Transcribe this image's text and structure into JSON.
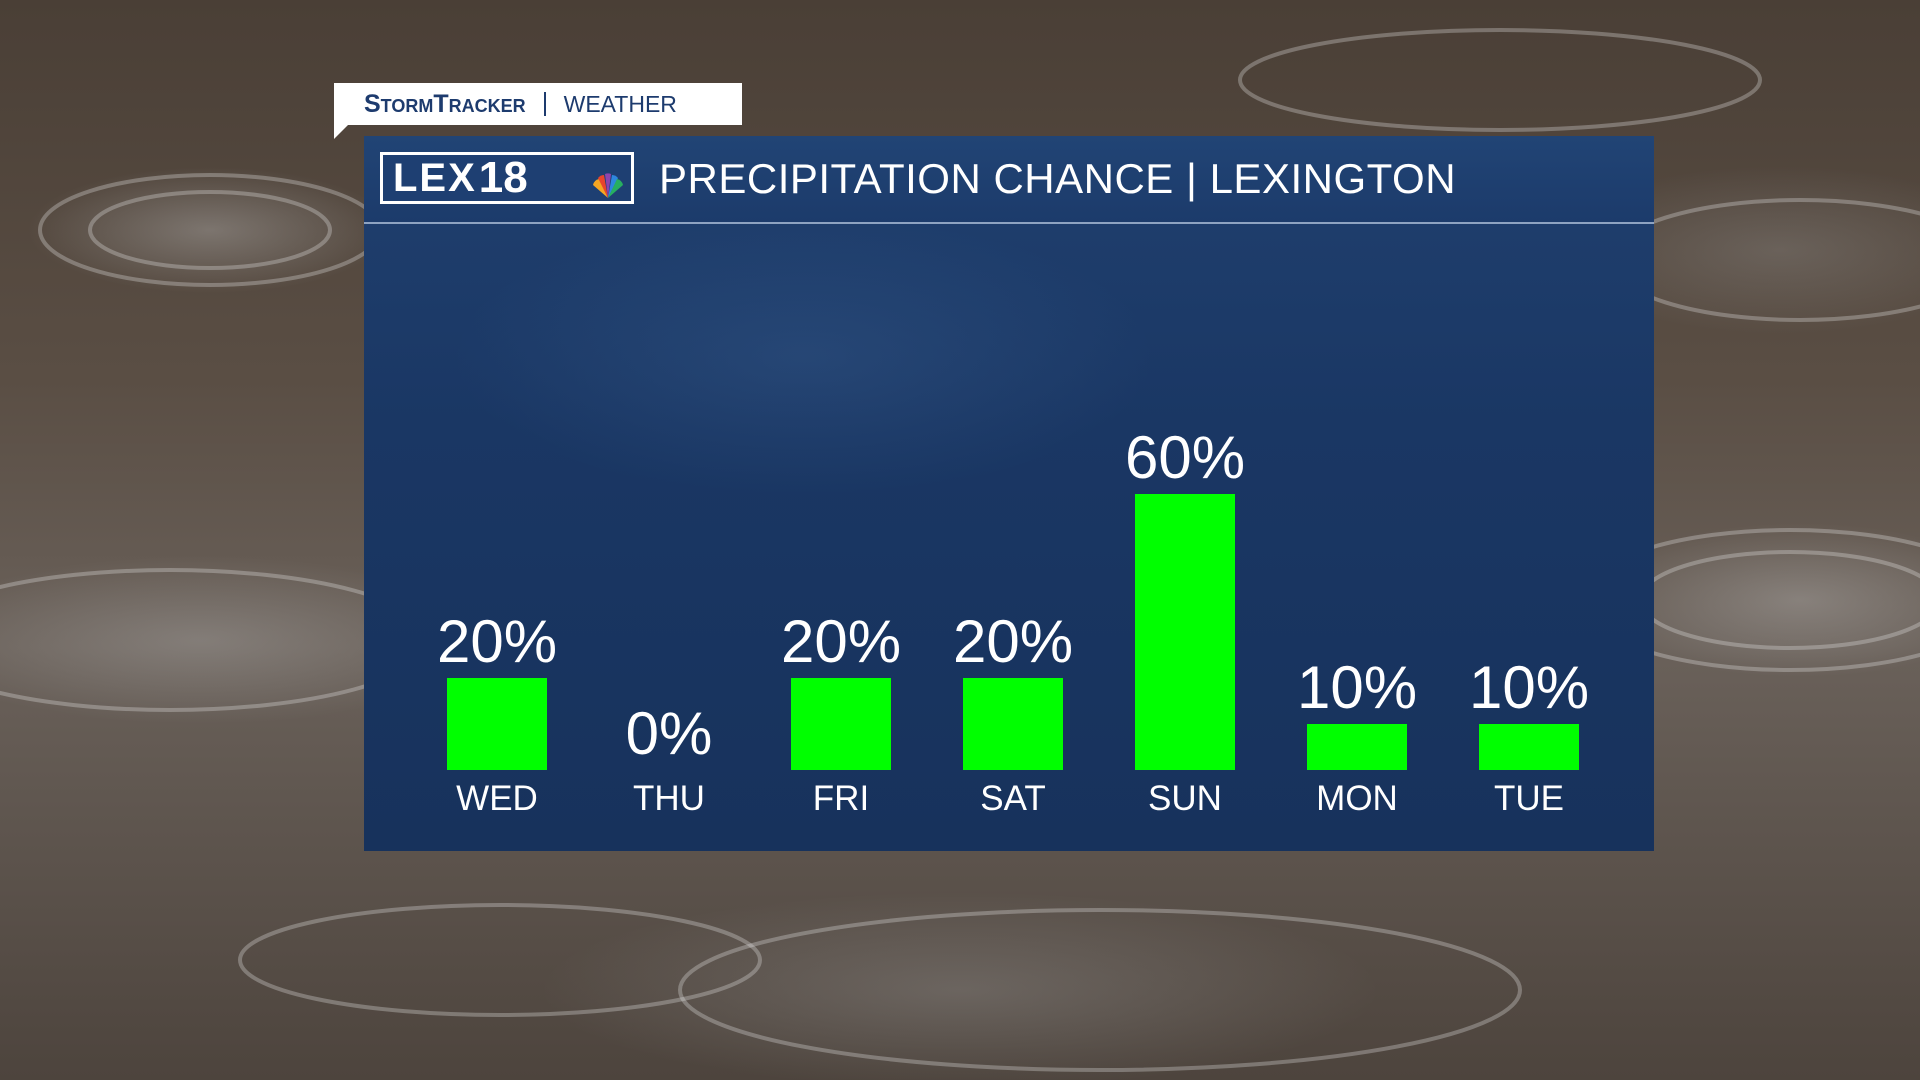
{
  "tab": {
    "brand": "StormTracker",
    "section": "WEATHER"
  },
  "header": {
    "logo_text": "LEX",
    "logo_number": "18",
    "title": "PRECIPITATION CHANCE | LEXINGTON"
  },
  "colors": {
    "bar": "#00ff00",
    "panel": "#1a3764",
    "text": "#ffffff",
    "brand_blue": "#1d3b6e"
  },
  "chart_data": {
    "type": "bar",
    "title": "PRECIPITATION CHANCE | LEXINGTON",
    "categories": [
      "WED",
      "THU",
      "FRI",
      "SAT",
      "SUN",
      "MON",
      "TUE"
    ],
    "values": [
      20,
      0,
      20,
      20,
      60,
      10,
      10
    ],
    "data_labels": [
      "20%",
      "0%",
      "20%",
      "20%",
      "60%",
      "10%",
      "10%"
    ],
    "ylim": [
      0,
      100
    ],
    "grid": false,
    "legend": "none"
  }
}
